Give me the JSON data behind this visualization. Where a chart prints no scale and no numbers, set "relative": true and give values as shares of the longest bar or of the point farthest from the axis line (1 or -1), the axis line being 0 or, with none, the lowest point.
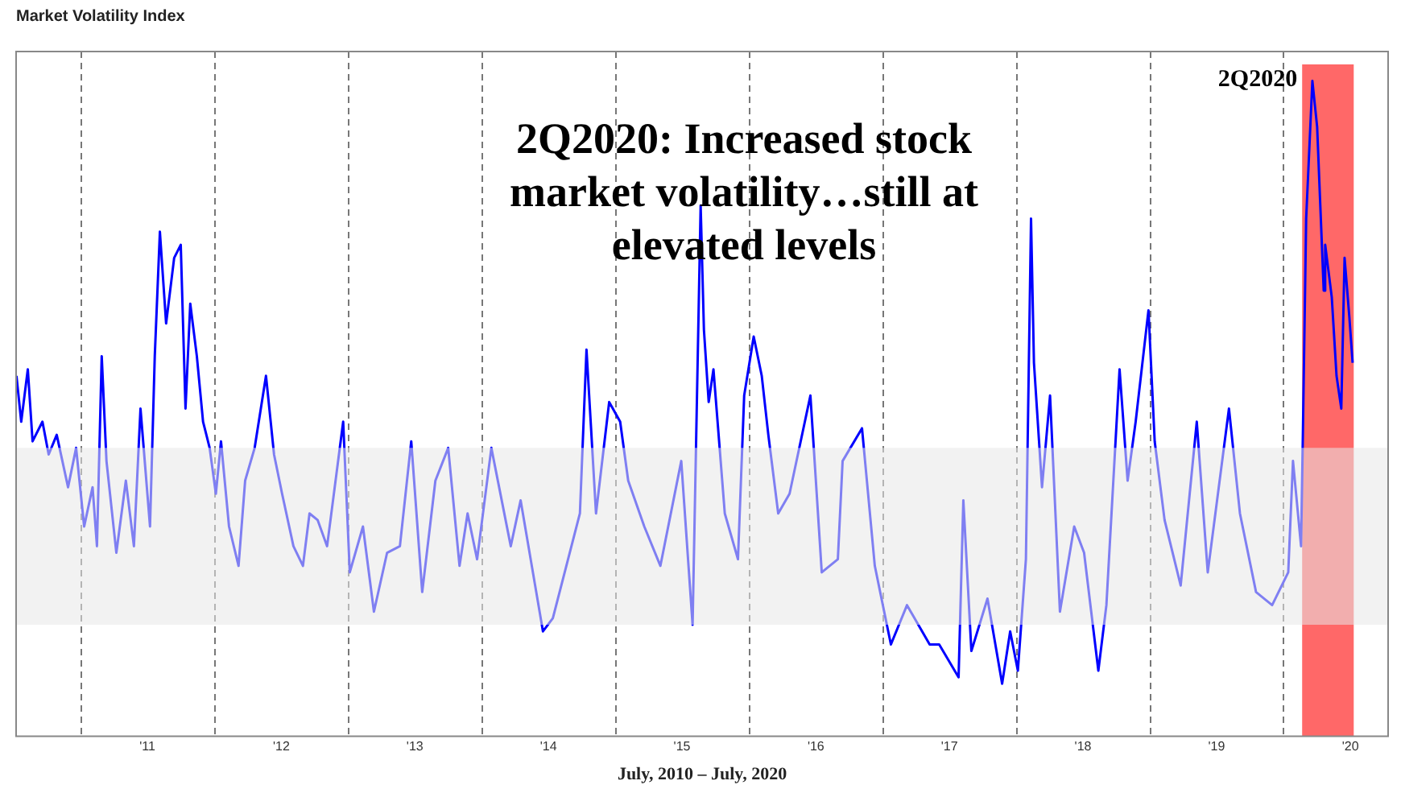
{
  "chart_data": {
    "type": "line",
    "title": "Market Volatility Index",
    "xlabel": "July, 2010 – July, 2020",
    "relative": true,
    "grid": "x",
    "legend": false,
    "xlim": [
      "2010-07-07",
      "2020-10-12"
    ],
    "xticks": [
      {
        "value": "2011-01-01",
        "label": null
      },
      {
        "value": "2011-07-01",
        "label": "'11"
      },
      {
        "value": "2012-01-01",
        "label": null
      },
      {
        "value": "2012-07-01",
        "label": "'12"
      },
      {
        "value": "2013-01-01",
        "label": null
      },
      {
        "value": "2013-07-01",
        "label": "'13"
      },
      {
        "value": "2014-01-01",
        "label": null
      },
      {
        "value": "2014-07-01",
        "label": "'14"
      },
      {
        "value": "2015-01-01",
        "label": null
      },
      {
        "value": "2015-07-01",
        "label": "'15"
      },
      {
        "value": "2016-01-01",
        "label": null
      },
      {
        "value": "2016-07-01",
        "label": "'16"
      },
      {
        "value": "2017-01-01",
        "label": null
      },
      {
        "value": "2017-07-01",
        "label": "'17"
      },
      {
        "value": "2018-01-01",
        "label": null
      },
      {
        "value": "2018-07-01",
        "label": "'18"
      },
      {
        "value": "2019-01-01",
        "label": null
      },
      {
        "value": "2019-07-01",
        "label": "'19"
      },
      {
        "value": "2020-01-01",
        "label": null
      },
      {
        "value": "2020-07-01",
        "label": "'20"
      }
    ],
    "x": [
      "2010-07-08",
      "2010-07-21",
      "2010-08-08",
      "2010-08-21",
      "2010-09-17",
      "2010-10-04",
      "2010-10-26",
      "2010-11-26",
      "2010-12-18",
      "2011-01-09",
      "2011-02-01",
      "2011-02-13",
      "2011-02-26",
      "2011-03-11",
      "2011-04-07",
      "2011-05-03",
      "2011-05-25",
      "2011-06-12",
      "2011-07-08",
      "2011-07-21",
      "2011-08-04",
      "2011-08-21",
      "2011-09-12",
      "2011-09-30",
      "2011-10-13",
      "2011-10-26",
      "2011-11-13",
      "2011-11-30",
      "2011-12-18",
      "2012-01-04",
      "2012-01-18",
      "2012-02-09",
      "2012-03-06",
      "2012-03-24",
      "2012-04-19",
      "2012-05-20",
      "2012-06-11",
      "2012-07-03",
      "2012-08-03",
      "2012-08-29",
      "2012-09-16",
      "2012-10-08",
      "2012-11-03",
      "2012-12-17",
      "2013-01-04",
      "2013-02-09",
      "2013-03-11",
      "2013-04-16",
      "2013-05-21",
      "2013-06-21",
      "2013-07-21",
      "2013-08-26",
      "2013-09-30",
      "2013-10-31",
      "2013-11-22",
      "2013-12-18",
      "2014-01-26",
      "2014-03-20",
      "2014-04-16",
      "2014-06-16",
      "2014-07-13",
      "2014-09-25",
      "2014-10-13",
      "2014-11-08",
      "2014-12-14",
      "2015-01-13",
      "2015-02-04",
      "2015-03-20",
      "2015-05-03",
      "2015-06-29",
      "2015-07-30",
      "2015-08-21",
      "2015-08-30",
      "2015-09-12",
      "2015-09-25",
      "2015-10-26",
      "2015-12-01",
      "2015-12-18",
      "2016-01-13",
      "2016-02-04",
      "2016-02-22",
      "2016-03-20",
      "2016-04-20",
      "2016-06-16",
      "2016-07-17",
      "2016-08-30",
      "2016-09-12",
      "2016-11-04",
      "2016-12-09",
      "2017-01-22",
      "2017-03-07",
      "2017-05-08",
      "2017-06-03",
      "2017-07-26",
      "2017-08-08",
      "2017-08-30",
      "2017-10-13",
      "2017-11-22",
      "2017-12-14",
      "2018-01-04",
      "2018-01-26",
      "2018-02-09",
      "2018-02-17",
      "2018-03-11",
      "2018-04-02",
      "2018-04-29",
      "2018-06-07",
      "2018-07-04",
      "2018-08-12",
      "2018-09-03",
      "2018-10-09",
      "2018-10-31",
      "2018-11-22",
      "2018-12-27",
      "2019-01-13",
      "2019-02-09",
      "2019-03-25",
      "2019-05-08",
      "2019-06-07",
      "2019-08-04",
      "2019-09-03",
      "2019-10-17",
      "2019-11-30",
      "2020-01-13",
      "2020-01-26",
      "2020-02-17",
      "2020-02-22",
      "2020-03-02",
      "2020-03-19",
      "2020-04-01",
      "2020-04-19",
      "2020-04-23",
      "2020-05-11",
      "2020-05-24",
      "2020-06-06",
      "2020-06-15",
      "2020-06-28",
      "2020-07-07"
    ],
    "series": [
      {
        "color": "#0000ff",
        "values": [
          0.55,
          0.48,
          0.56,
          0.45,
          0.48,
          0.43,
          0.46,
          0.38,
          0.44,
          0.32,
          0.38,
          0.29,
          0.58,
          0.42,
          0.28,
          0.39,
          0.29,
          0.5,
          0.32,
          0.58,
          0.77,
          0.63,
          0.73,
          0.75,
          0.5,
          0.66,
          0.58,
          0.48,
          0.44,
          0.37,
          0.45,
          0.32,
          0.26,
          0.39,
          0.44,
          0.55,
          0.43,
          0.37,
          0.29,
          0.26,
          0.34,
          0.33,
          0.29,
          0.48,
          0.25,
          0.32,
          0.19,
          0.28,
          0.29,
          0.45,
          0.22,
          0.39,
          0.44,
          0.26,
          0.34,
          0.27,
          0.44,
          0.29,
          0.36,
          0.16,
          0.18,
          0.34,
          0.59,
          0.34,
          0.51,
          0.48,
          0.39,
          0.32,
          0.26,
          0.42,
          0.17,
          0.81,
          0.62,
          0.51,
          0.56,
          0.34,
          0.27,
          0.52,
          0.61,
          0.55,
          0.46,
          0.34,
          0.37,
          0.52,
          0.25,
          0.27,
          0.42,
          0.47,
          0.26,
          0.14,
          0.2,
          0.14,
          0.14,
          0.09,
          0.36,
          0.13,
          0.21,
          0.08,
          0.16,
          0.1,
          0.27,
          0.79,
          0.57,
          0.38,
          0.52,
          0.19,
          0.32,
          0.28,
          0.1,
          0.2,
          0.56,
          0.39,
          0.48,
          0.65,
          0.45,
          0.33,
          0.23,
          0.48,
          0.25,
          0.5,
          0.34,
          0.22,
          0.2,
          0.25,
          0.42,
          0.29,
          0.46,
          0.79,
          1.0,
          0.93,
          0.68,
          0.75,
          0.67,
          0.55,
          0.5,
          0.73,
          0.64,
          0.57
        ]
      }
    ],
    "bands": [
      {
        "axis": "y",
        "from": 0.17,
        "to": 0.44,
        "color": "#e8e8e8"
      },
      {
        "axis": "x",
        "from": "2020-02-20",
        "to": "2020-07-10",
        "label": "2Q2020",
        "color": "#ff4d4d"
      }
    ],
    "annotations": [
      "2Q2020: Increased stock market volatility…still at elevated levels"
    ]
  }
}
